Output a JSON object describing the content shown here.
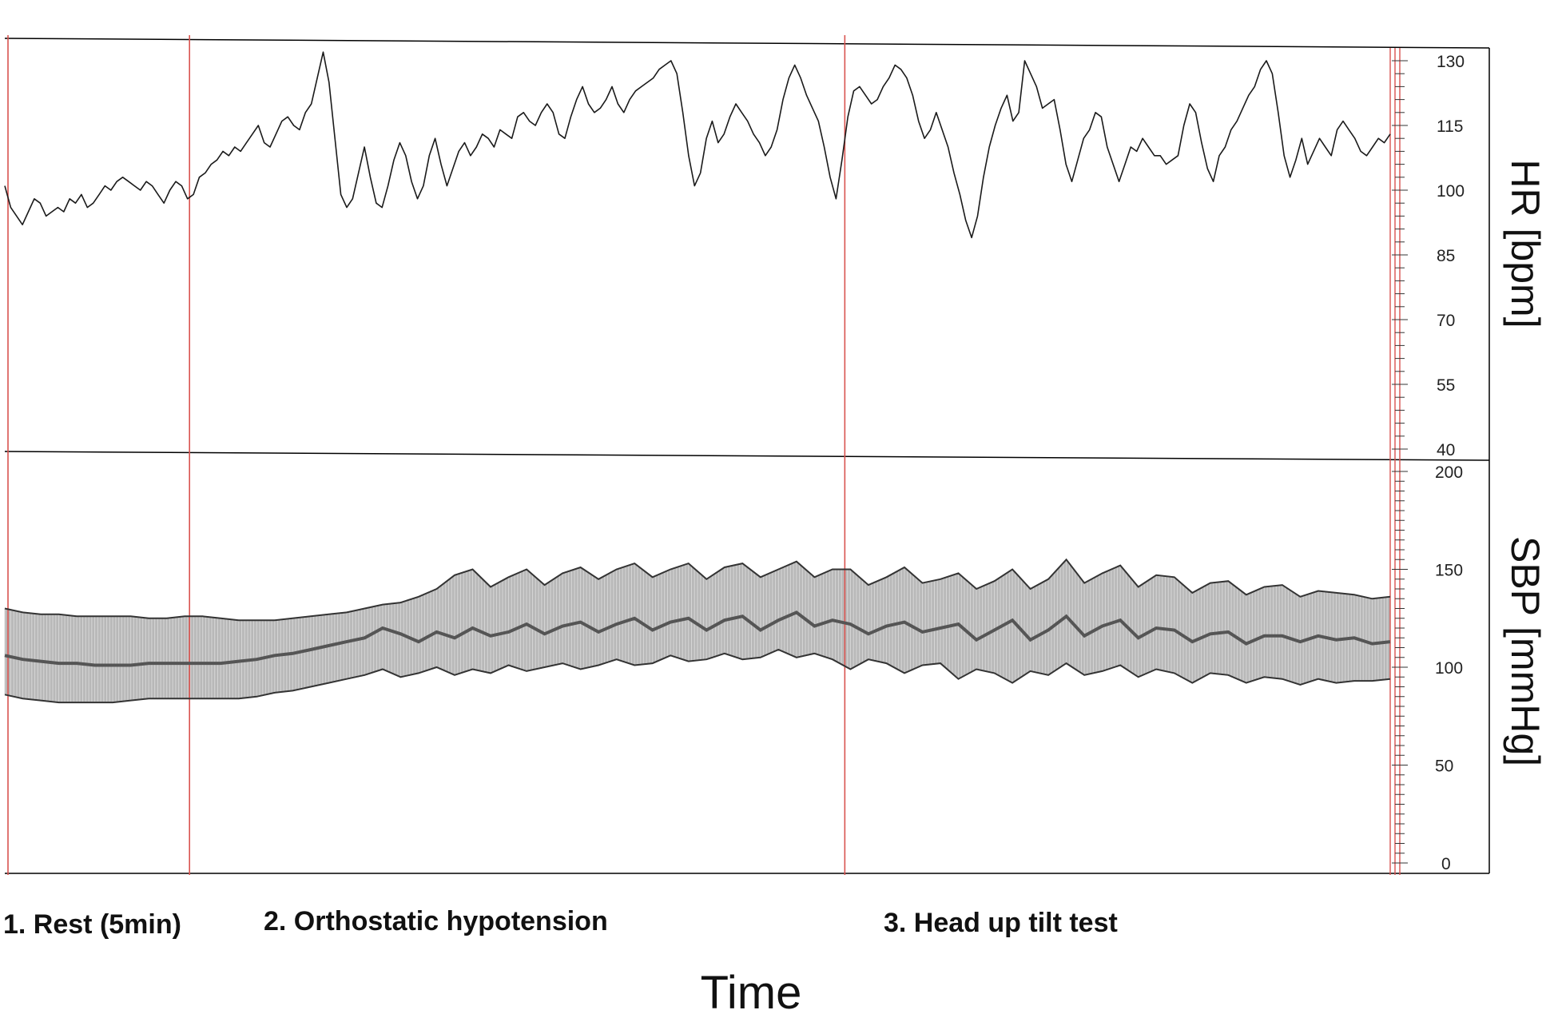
{
  "chart_data": [
    {
      "type": "line",
      "panel": "top",
      "ylabel": "HR [bpm]",
      "xlabel": "Time",
      "x_range": [
        0,
        1740
      ],
      "ylim": [
        40,
        130
      ],
      "yticks": [
        130,
        115,
        100,
        85,
        70,
        55,
        40
      ],
      "grid": false,
      "series": [
        {
          "values": [
            101,
            96,
            94,
            92,
            95,
            98,
            97,
            94,
            95,
            96,
            95,
            98,
            97,
            99,
            96,
            97,
            99,
            101,
            100,
            102,
            103,
            102,
            101,
            100,
            102,
            101,
            99,
            97,
            100,
            102,
            101,
            98,
            99,
            103,
            104,
            106,
            107,
            109,
            108,
            110,
            109,
            111,
            113,
            115,
            111,
            110,
            113,
            116,
            117,
            115,
            114,
            118,
            120,
            126,
            132,
            125,
            112,
            99,
            96,
            98,
            104,
            110,
            103,
            97,
            96,
            101,
            107,
            111,
            108,
            102,
            98,
            101,
            108,
            112,
            106,
            101,
            105,
            109,
            111,
            108,
            110,
            113,
            112,
            110,
            114,
            113,
            112,
            117,
            118,
            116,
            115,
            118,
            120,
            118,
            113,
            112,
            117,
            121,
            124,
            120,
            118,
            119,
            121,
            124,
            120,
            118,
            121,
            123,
            124,
            125,
            126,
            128,
            129,
            130,
            127,
            118,
            108,
            101,
            104,
            112,
            116,
            111,
            113,
            117,
            120,
            118,
            116,
            113,
            111,
            108,
            110,
            114,
            121,
            126,
            129,
            126,
            122,
            119,
            116,
            110,
            103,
            98,
            107,
            117,
            123,
            124,
            122,
            120,
            121,
            124,
            126,
            129,
            128,
            126,
            122,
            116,
            112,
            114,
            118,
            114,
            110,
            104,
            99,
            93,
            89,
            94,
            103,
            110,
            115,
            119,
            122,
            116,
            118,
            130,
            127,
            124,
            119,
            120,
            121,
            114,
            106,
            102,
            107,
            112,
            114,
            118,
            117,
            110,
            106,
            102,
            106,
            110,
            109,
            112,
            110,
            108,
            108,
            106,
            107,
            108,
            115,
            120,
            118,
            111,
            105,
            102,
            108,
            110,
            114,
            116,
            119,
            122,
            124,
            128,
            130,
            127,
            118,
            108,
            103,
            107,
            112,
            106,
            109,
            112,
            110,
            108,
            114,
            116,
            114,
            112,
            109,
            108,
            110,
            112,
            111,
            113
          ],
          "color": "#1a1a1a"
        }
      ]
    },
    {
      "type": "area",
      "panel": "bottom",
      "ylabel": "SBP [mmHg]",
      "xlabel": "Time",
      "x_range": [
        0,
        1740
      ],
      "ylim": [
        0,
        200
      ],
      "yticks": [
        200,
        150,
        100,
        50,
        0
      ],
      "grid": false,
      "series": [
        {
          "name": "",
          "role": "upper",
          "values": [
            130,
            128,
            127,
            127,
            126,
            126,
            126,
            126,
            125,
            125,
            126,
            126,
            125,
            124,
            124,
            124,
            125,
            126,
            127,
            128,
            130,
            132,
            133,
            136,
            140,
            147,
            150,
            141,
            146,
            150,
            142,
            148,
            151,
            145,
            150,
            153,
            146,
            150,
            153,
            145,
            151,
            153,
            146,
            150,
            154,
            146,
            150,
            150,
            142,
            146,
            151,
            143,
            145,
            148,
            140,
            144,
            150,
            140,
            145,
            155,
            143,
            148,
            152,
            141,
            147,
            146,
            138,
            143,
            144,
            137,
            141,
            142,
            136,
            139,
            138,
            137,
            135,
            136
          ],
          "color": "#333333"
        },
        {
          "name": "",
          "role": "mean",
          "values": [
            106,
            104,
            103,
            102,
            102,
            101,
            101,
            101,
            102,
            102,
            102,
            102,
            102,
            103,
            104,
            106,
            107,
            109,
            111,
            113,
            115,
            120,
            117,
            113,
            118,
            115,
            120,
            116,
            118,
            122,
            117,
            121,
            123,
            118,
            122,
            125,
            119,
            123,
            125,
            119,
            124,
            126,
            119,
            124,
            128,
            121,
            124,
            122,
            117,
            121,
            123,
            118,
            120,
            122,
            114,
            119,
            124,
            114,
            119,
            126,
            116,
            121,
            124,
            115,
            120,
            119,
            113,
            117,
            118,
            112,
            116,
            116,
            113,
            116,
            114,
            115,
            112,
            113
          ],
          "color": "#555555"
        },
        {
          "name": "",
          "role": "lower",
          "values": [
            86,
            84,
            83,
            82,
            82,
            82,
            82,
            83,
            84,
            84,
            84,
            84,
            84,
            84,
            85,
            87,
            88,
            90,
            92,
            94,
            96,
            99,
            95,
            97,
            100,
            96,
            99,
            97,
            101,
            98,
            100,
            102,
            99,
            101,
            104,
            101,
            102,
            106,
            103,
            104,
            107,
            104,
            105,
            109,
            105,
            107,
            104,
            99,
            104,
            102,
            97,
            101,
            102,
            94,
            99,
            97,
            92,
            98,
            96,
            102,
            96,
            98,
            101,
            95,
            99,
            97,
            92,
            97,
            96,
            92,
            95,
            94,
            91,
            94,
            92,
            93,
            93,
            94
          ],
          "color": "#333333"
        }
      ]
    }
  ],
  "phases": [
    {
      "label": "1. Rest (5min)",
      "x": 0
    },
    {
      "label": "2. Orthostatic hypotension",
      "x": 232
    },
    {
      "label": "3. Head up tilt test",
      "x": 1055
    }
  ],
  "end_marker_x": 1740,
  "colors": {
    "phase_line": "#d9534f",
    "band_fill": "#b8b8b8",
    "trace": "#1a1a1a",
    "axis_line": "#000000"
  }
}
